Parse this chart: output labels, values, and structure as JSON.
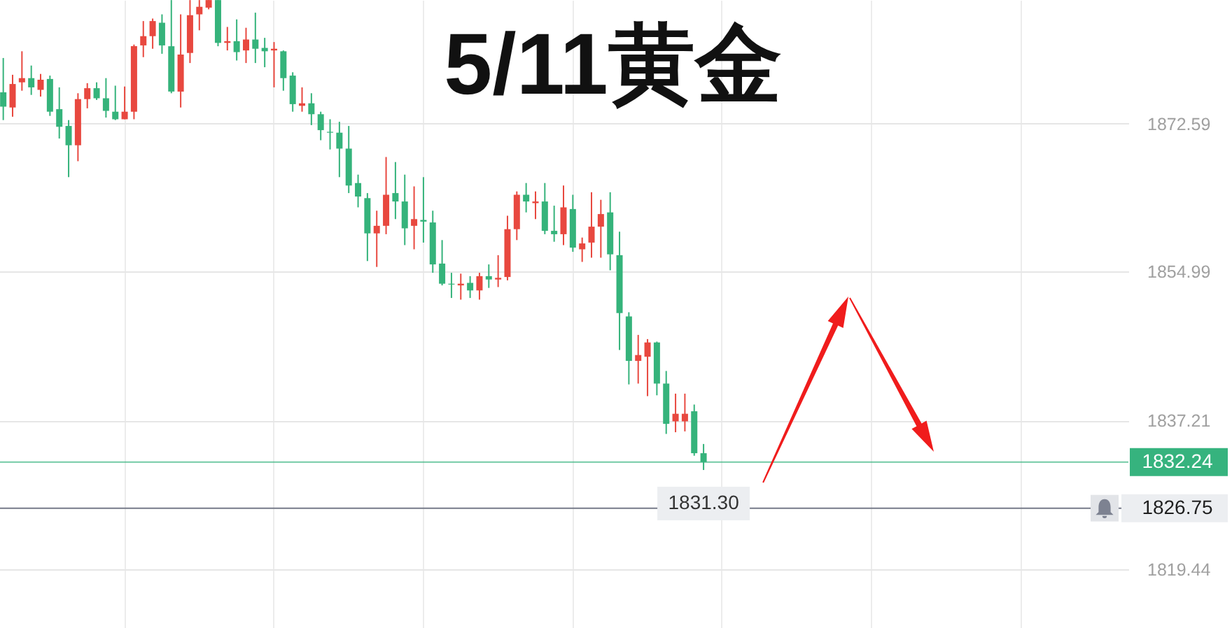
{
  "chart_data": {
    "type": "candlestick",
    "title": "5/11黄金",
    "categories": [
      null,
      null,
      null,
      null,
      null,
      null,
      null,
      null,
      null,
      null,
      null,
      null,
      null,
      null,
      null,
      null,
      null,
      null,
      null,
      null,
      null,
      null,
      null,
      null,
      null,
      null,
      null,
      null,
      null,
      null,
      null,
      null,
      null,
      null,
      null,
      null,
      null,
      null,
      null,
      null,
      null,
      null,
      null,
      null,
      null,
      null,
      null,
      null,
      null,
      null,
      null,
      null,
      null,
      null,
      null,
      null,
      null,
      null,
      null,
      null,
      null,
      null,
      null,
      null,
      null,
      null,
      null,
      null,
      null,
      null,
      null,
      null,
      null,
      null,
      null,
      null,
      null,
      null,
      null,
      null,
      null,
      null,
      null,
      null,
      null,
      null,
      null,
      null,
      null,
      null,
      null,
      null,
      null,
      null,
      null,
      null,
      null,
      null,
      null,
      null,
      null,
      null,
      null,
      null,
      null,
      null,
      null,
      null,
      null,
      null,
      null,
      null,
      null,
      null,
      null,
      null,
      null,
      null,
      null,
      null,
      null
    ],
    "ohlc": [
      [
        1876.3,
        1880.4,
        1873.0,
        1874.6
      ],
      [
        1874.5,
        1878.4,
        1873.4,
        1877.3
      ],
      [
        1877.5,
        1881.2,
        1876.5,
        1878.0
      ],
      [
        1878.0,
        1879.5,
        1876.0,
        1876.9
      ],
      [
        1876.6,
        1878.5,
        1875.8,
        1877.8
      ],
      [
        1877.9,
        1878.3,
        1873.5,
        1874.0
      ],
      [
        1874.3,
        1876.9,
        1870.8,
        1872.2
      ],
      [
        1872.3,
        1873.0,
        1866.2,
        1870.0
      ],
      [
        1870.0,
        1876.2,
        1868.1,
        1875.5
      ],
      [
        1875.5,
        1877.4,
        1874.4,
        1876.8
      ],
      [
        1876.8,
        1877.5,
        1875.4,
        1875.6
      ],
      [
        1875.6,
        1878.0,
        1873.3,
        1874.1
      ],
      [
        1874.0,
        1877.1,
        1873.0,
        1873.1
      ],
      [
        1873.1,
        1877.0,
        1873.1,
        1874.0
      ],
      [
        1874.0,
        1882.0,
        1873.1,
        1881.8
      ],
      [
        1881.9,
        1884.8,
        1880.5,
        1883.0
      ],
      [
        1883.0,
        1885.1,
        1881.5,
        1884.8
      ],
      [
        1884.6,
        1885.6,
        1880.9,
        1881.9
      ],
      [
        1881.8,
        1887.3,
        1876.2,
        1876.4
      ],
      [
        1876.4,
        1885.6,
        1874.5,
        1880.8
      ],
      [
        1881.0,
        1887.3,
        1879.8,
        1885.5
      ],
      [
        1885.6,
        1887.3,
        1883.7,
        1886.5
      ],
      [
        1886.4,
        1887.3,
        1886.2,
        1887.3
      ],
      [
        1887.3,
        1887.3,
        1881.8,
        1882.2
      ],
      [
        1882.2,
        1884.1,
        1881.3,
        1882.4
      ],
      [
        1882.4,
        1885.0,
        1880.1,
        1881.1
      ],
      [
        1881.3,
        1884.0,
        1879.8,
        1882.6
      ],
      [
        1882.6,
        1885.8,
        1879.8,
        1881.5
      ],
      [
        1881.6,
        1882.8,
        1879.3,
        1881.2
      ],
      [
        1881.3,
        1882.3,
        1876.9,
        1881.5
      ],
      [
        1881.2,
        1881.3,
        1876.5,
        1878.0
      ],
      [
        1878.3,
        1878.7,
        1874.0,
        1874.9
      ],
      [
        1874.7,
        1876.9,
        1874.0,
        1875.0
      ],
      [
        1875.0,
        1876.2,
        1872.4,
        1873.7
      ],
      [
        1873.7,
        1874.0,
        1870.6,
        1871.8
      ],
      [
        1871.6,
        1873.1,
        1869.5,
        1871.5
      ],
      [
        1871.5,
        1872.8,
        1866.2,
        1869.6
      ],
      [
        1869.6,
        1872.3,
        1864.3,
        1865.2
      ],
      [
        1865.5,
        1866.5,
        1862.6,
        1863.9
      ],
      [
        1863.7,
        1864.3,
        1856.2,
        1859.5
      ],
      [
        1859.5,
        1862.2,
        1855.5,
        1860.4
      ],
      [
        1860.4,
        1868.6,
        1859.4,
        1864.1
      ],
      [
        1864.3,
        1868.0,
        1861.2,
        1863.3
      ],
      [
        1863.3,
        1866.5,
        1858.1,
        1860.1
      ],
      [
        1860.4,
        1865.1,
        1857.6,
        1861.2
      ],
      [
        1861.1,
        1866.2,
        1858.4,
        1860.9
      ],
      [
        1860.8,
        1862.2,
        1854.8,
        1855.8
      ],
      [
        1855.9,
        1858.7,
        1853.3,
        1853.5
      ],
      [
        1853.5,
        1854.8,
        1851.8,
        1853.4
      ],
      [
        1853.3,
        1854.7,
        1851.6,
        1853.5
      ],
      [
        1853.6,
        1854.4,
        1851.8,
        1852.7
      ],
      [
        1852.7,
        1854.8,
        1851.6,
        1854.4
      ],
      [
        1854.4,
        1855.8,
        1853.0,
        1854.0
      ],
      [
        1854.0,
        1856.9,
        1853.1,
        1854.2
      ],
      [
        1854.3,
        1861.6,
        1853.9,
        1860.0
      ],
      [
        1860.0,
        1864.5,
        1858.7,
        1864.1
      ],
      [
        1864.1,
        1865.5,
        1862.0,
        1863.3
      ],
      [
        1863.1,
        1864.5,
        1861.2,
        1863.3
      ],
      [
        1863.3,
        1865.5,
        1859.4,
        1859.8
      ],
      [
        1859.8,
        1862.8,
        1858.5,
        1859.4
      ],
      [
        1859.4,
        1865.2,
        1858.1,
        1862.6
      ],
      [
        1862.4,
        1864.1,
        1857.3,
        1857.8
      ],
      [
        1857.6,
        1859.0,
        1856.1,
        1858.3
      ],
      [
        1858.4,
        1864.4,
        1856.6,
        1860.3
      ],
      [
        1860.3,
        1863.5,
        1856.6,
        1861.8
      ],
      [
        1862.0,
        1864.4,
        1855.1,
        1857.0
      ],
      [
        1856.9,
        1859.7,
        1845.6,
        1850.0
      ],
      [
        1849.6,
        1850.1,
        1841.5,
        1844.3
      ],
      [
        1844.3,
        1847.4,
        1841.6,
        1845.0
      ],
      [
        1844.8,
        1846.9,
        1840.1,
        1846.5
      ],
      [
        1846.5,
        1846.6,
        1840.2,
        1841.6
      ],
      [
        1841.6,
        1843.1,
        1835.6,
        1836.8
      ],
      [
        1837.1,
        1840.4,
        1835.8,
        1838.0
      ],
      [
        1837.1,
        1840.4,
        1835.9,
        1838.0
      ],
      [
        1838.3,
        1839.1,
        1833.0,
        1833.3
      ],
      [
        1833.3,
        1834.4,
        1831.3,
        1832.24
      ],
      null,
      null,
      null,
      null,
      null,
      null,
      null,
      null,
      null,
      null,
      null,
      null,
      null,
      null,
      null,
      null,
      null,
      null,
      null,
      null,
      null,
      null,
      null,
      null,
      null,
      null,
      null,
      null,
      null,
      null,
      null,
      null,
      null,
      null,
      null,
      null,
      null,
      null,
      null,
      null,
      null,
      null,
      null,
      null,
      null
    ],
    "colors": [
      "#35b37b",
      "#e8483f",
      "#e8483f",
      "#35b37b",
      "#e8483f",
      "#35b37b",
      "#35b37b",
      "#35b37b",
      "#e8483f",
      "#e8483f",
      "#35b37b",
      "#35b37b",
      "#35b37b",
      "#e8483f",
      "#e8483f",
      "#e8483f",
      "#e8483f",
      "#35b37b",
      "#35b37b",
      "#e8483f",
      "#e8483f",
      "#e8483f",
      "#e8483f",
      "#35b37b",
      "#e8483f",
      "#35b37b",
      "#e8483f",
      "#35b37b",
      "#35b37b",
      "#e8483f",
      "#35b37b",
      "#35b37b",
      "#e8483f",
      "#35b37b",
      "#35b37b",
      "#35b37b",
      "#35b37b",
      "#35b37b",
      "#35b37b",
      "#35b37b",
      "#e8483f",
      "#e8483f",
      "#35b37b",
      "#35b37b",
      "#e8483f",
      "#35b37b",
      "#35b37b",
      "#35b37b",
      "#35b37b",
      "#e8483f",
      "#35b37b",
      "#e8483f",
      "#35b37b",
      "#e8483f",
      "#e8483f",
      "#e8483f",
      "#35b37b",
      "#e8483f",
      "#35b37b",
      "#35b37b",
      "#e8483f",
      "#35b37b",
      "#e8483f",
      "#e8483f",
      "#e8483f",
      "#35b37b",
      "#35b37b",
      "#35b37b",
      "#e8483f",
      "#e8483f",
      "#35b37b",
      "#35b37b",
      "#e8483f",
      "#e8483f",
      "#35b37b",
      "#35b37b",
      null,
      null,
      null,
      null,
      null,
      null,
      null,
      null,
      null,
      null,
      null,
      null,
      null,
      null,
      null,
      null,
      null,
      null,
      null,
      null,
      null,
      null,
      null,
      null,
      null,
      null,
      null,
      null,
      null,
      null,
      null,
      null,
      null,
      null,
      null,
      null,
      null,
      null,
      null,
      null,
      null,
      null,
      null,
      null,
      null
    ],
    "ylim": [
      1812.47,
      1887.31
    ],
    "yticks": [
      1872.59,
      1854.99,
      1837.21,
      1819.44
    ],
    "grid": true,
    "tick_labels": "y",
    "ref_lines": [
      {
        "axis": "y",
        "value": 1832.24,
        "label": "1832.24",
        "color": "#36b37e"
      },
      {
        "axis": "y",
        "value": 1826.75,
        "label": "1826.75",
        "color": "#767a89"
      }
    ],
    "annotations": [
      {
        "text": "1831.30",
        "y": 1831.3
      }
    ]
  }
}
